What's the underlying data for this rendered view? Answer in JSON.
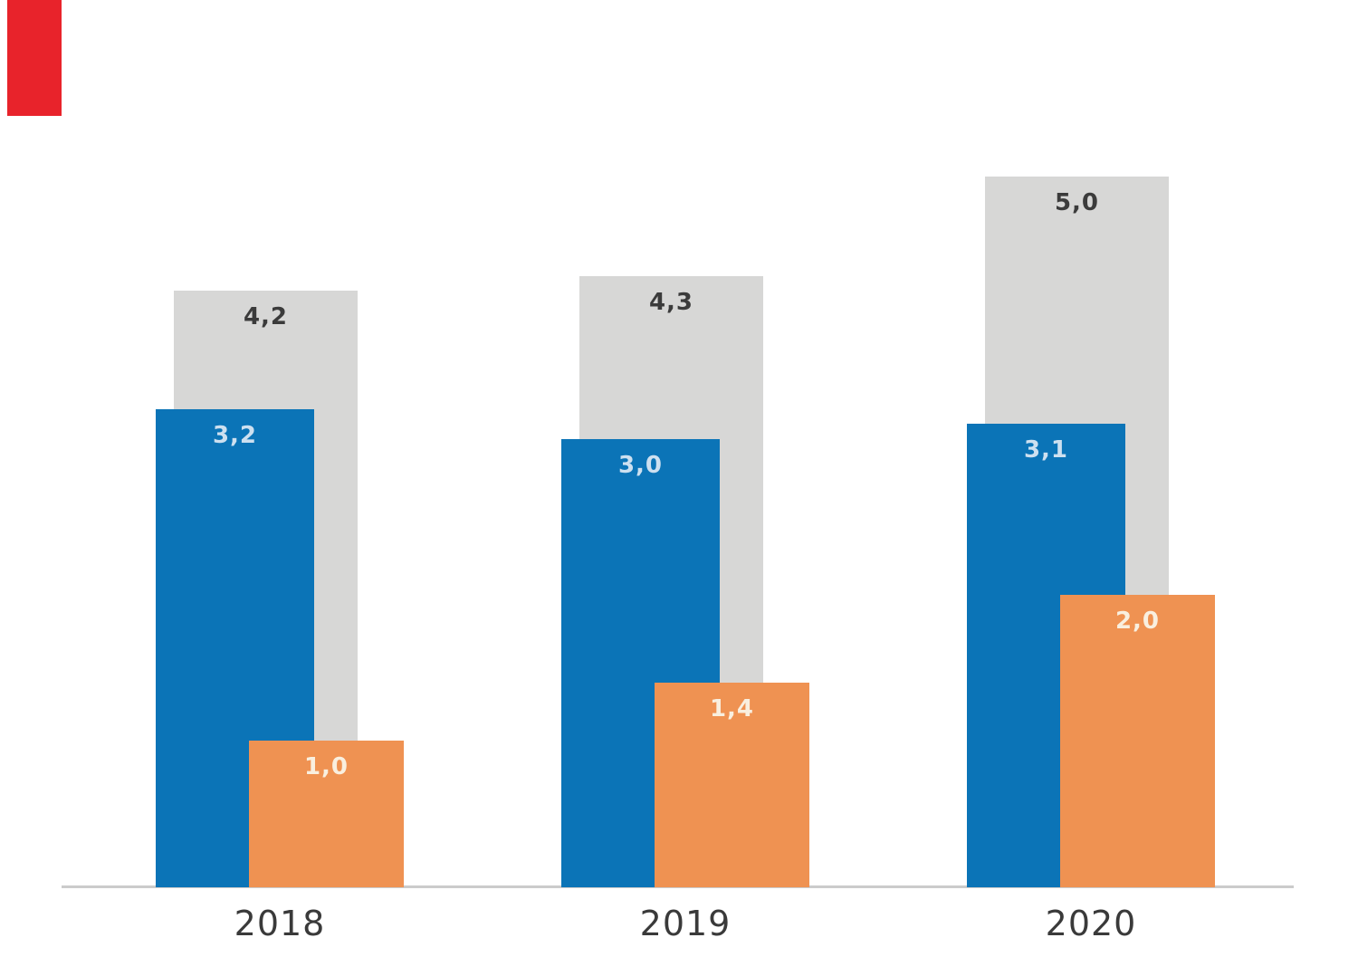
{
  "chart_data": {
    "type": "bar",
    "title": "",
    "xlabel": "",
    "ylabel": "",
    "categories": [
      "2018",
      "2019",
      "2020"
    ],
    "series": [
      {
        "name": "total-gray",
        "color": "#d7d7d6",
        "label_color": "#3b3b3b",
        "values": [
          4.2,
          4.3,
          5.0
        ],
        "labels": [
          "4,2",
          "4,3",
          "5,0"
        ]
      },
      {
        "name": "primary-blue",
        "color": "#0b74b7",
        "label_color": "#cde0f0",
        "values": [
          3.2,
          3.0,
          3.1
        ],
        "labels": [
          "3,2",
          "3,0",
          "3,1"
        ]
      },
      {
        "name": "secondary-orange",
        "color": "#ef9252",
        "label_color": "#f9efdf",
        "values": [
          1.0,
          1.4,
          2.0
        ],
        "labels": [
          "1,0",
          "1,4",
          "2,0"
        ]
      }
    ],
    "ylim": [
      0,
      5
    ],
    "grid": false,
    "legend": "none",
    "value_label_decimal_separator": ",",
    "axis_line_color": "#cbcbcb",
    "tick_label_color": "#3a3a3a",
    "background": "#ffffff"
  },
  "decorations": {
    "red_corner_mark_color": "#e8232b"
  }
}
